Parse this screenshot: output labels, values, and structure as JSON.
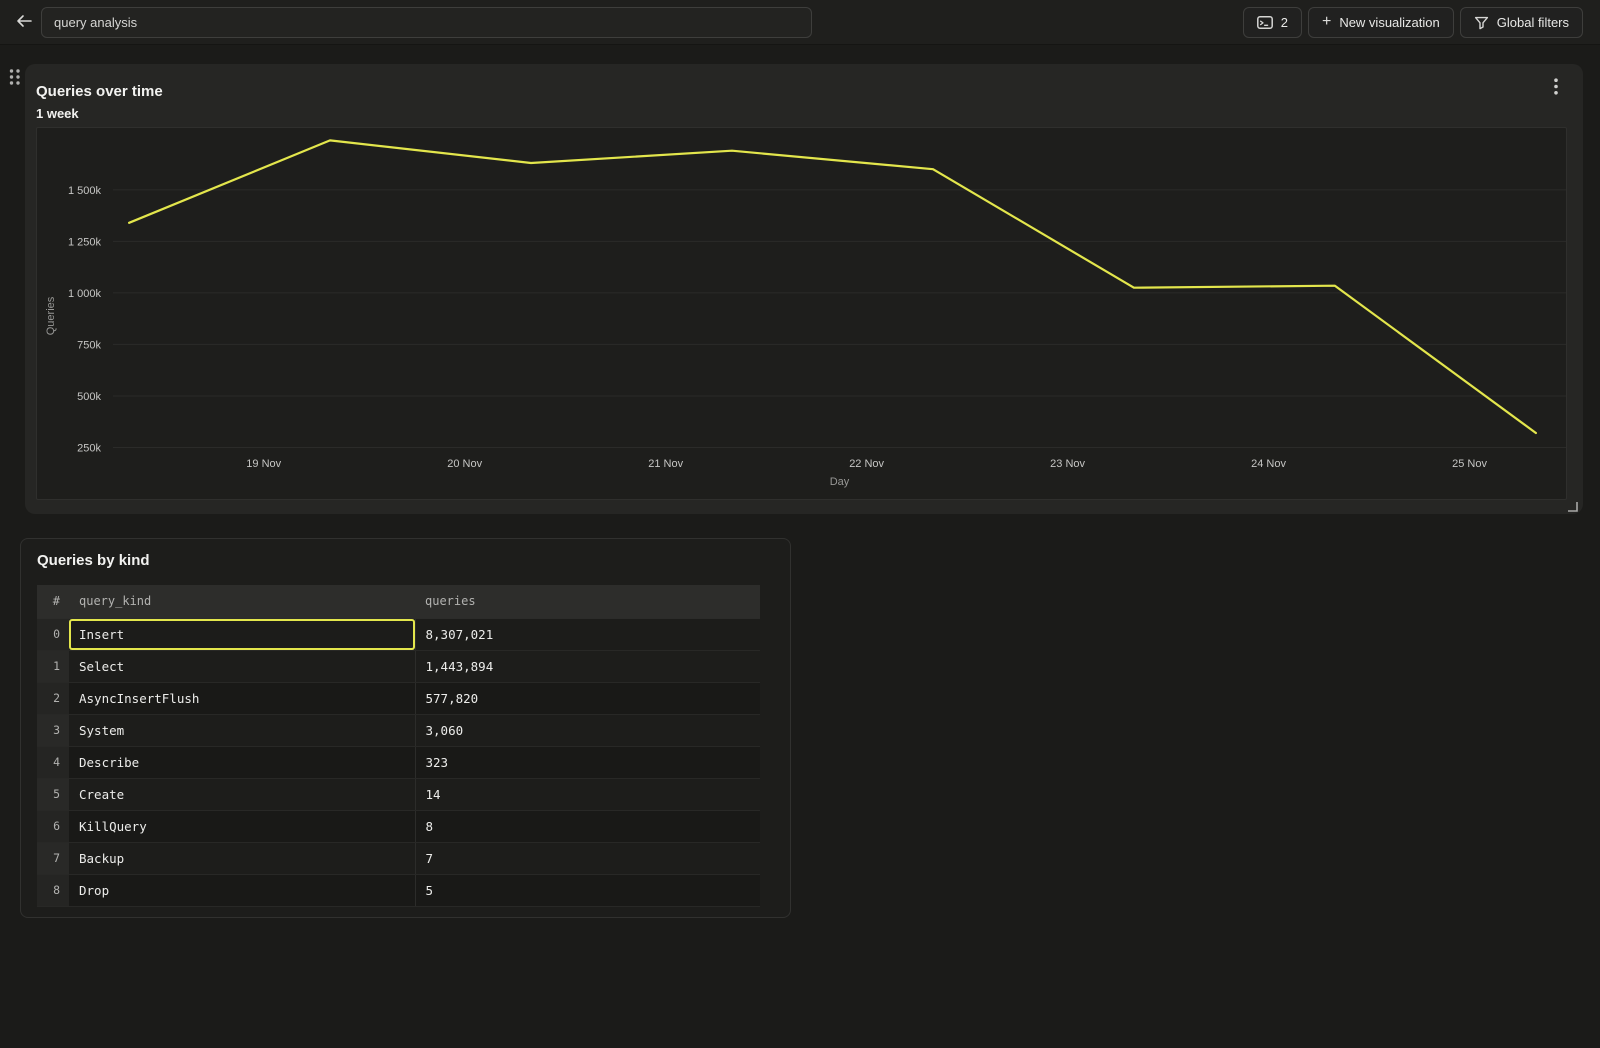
{
  "colors": {
    "accent_yellow": "#e3e64c",
    "page_bg": "#1b1b19",
    "panel_bg": "#262624",
    "plot_bg": "#1e1e1c",
    "gridline": "#2b2b29",
    "tick_label": "#c6c6c4",
    "axis_title": "#989896"
  },
  "topbar": {
    "back_icon": "left-arrow",
    "title_input": {
      "value": "query analysis"
    },
    "console_button": {
      "icon": "sql-console",
      "count": "2"
    },
    "new_visualization_button": {
      "plus": "+",
      "label": "New visualization"
    },
    "global_filters_button": {
      "icon": "funnel",
      "label": "Global filters"
    }
  },
  "chart_panel": {
    "menu_icon": "kebab-vertical",
    "drag_icon": "six-dots",
    "resize_icon": "corner-bracket"
  },
  "chart_data": {
    "type": "line",
    "title": "Queries over time",
    "subtitle": "1 week",
    "xlabel": "Day",
    "ylabel": "Queries",
    "grid": "horizontal",
    "legend": "none",
    "xlim": [
      18.25,
      25.48
    ],
    "ylim": [
      0,
      1800000
    ],
    "series": [
      {
        "name": "Queries",
        "color": "#e3e64c",
        "x": [
          18.33,
          19.33,
          20.33,
          21.33,
          22.33,
          23.33,
          24.33,
          25.33
        ],
        "values": [
          1340000,
          1740000,
          1630000,
          1690000,
          1600000,
          1025000,
          1035000,
          320000
        ]
      }
    ],
    "x_ticks": [
      {
        "x": 19,
        "label": "19 Nov"
      },
      {
        "x": 20,
        "label": "20 Nov"
      },
      {
        "x": 21,
        "label": "21 Nov"
      },
      {
        "x": 22,
        "label": "22 Nov"
      },
      {
        "x": 23,
        "label": "23 Nov"
      },
      {
        "x": 24,
        "label": "24 Nov"
      },
      {
        "x": 25,
        "label": "25 Nov"
      }
    ],
    "y_ticks": [
      {
        "value": 250000,
        "label": "250k"
      },
      {
        "value": 500000,
        "label": "500k"
      },
      {
        "value": 750000,
        "label": "750k"
      },
      {
        "value": 1000000,
        "label": "1 000k"
      },
      {
        "value": 1250000,
        "label": "1 250k"
      },
      {
        "value": 1500000,
        "label": "1 500k"
      }
    ]
  },
  "table_panel": {
    "title": "Queries by kind",
    "columns": [
      "#",
      "query_kind",
      "queries"
    ],
    "rows": [
      {
        "index": "0",
        "query_kind": "Insert",
        "queries": "8,307,021",
        "selected": true
      },
      {
        "index": "1",
        "query_kind": "Select",
        "queries": "1,443,894",
        "selected": false
      },
      {
        "index": "2",
        "query_kind": "AsyncInsertFlush",
        "queries": "577,820",
        "selected": false
      },
      {
        "index": "3",
        "query_kind": "System",
        "queries": "3,060",
        "selected": false
      },
      {
        "index": "4",
        "query_kind": "Describe",
        "queries": "323",
        "selected": false
      },
      {
        "index": "5",
        "query_kind": "Create",
        "queries": "14",
        "selected": false
      },
      {
        "index": "6",
        "query_kind": "KillQuery",
        "queries": "8",
        "selected": false
      },
      {
        "index": "7",
        "query_kind": "Backup",
        "queries": "7",
        "selected": false
      },
      {
        "index": "8",
        "query_kind": "Drop",
        "queries": "5",
        "selected": false
      }
    ]
  }
}
